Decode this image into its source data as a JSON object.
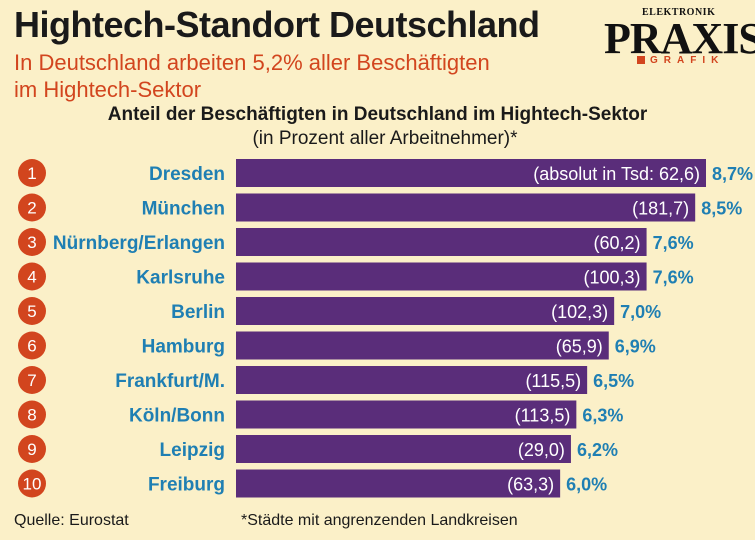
{
  "title": "Hightech-Standort Deutschland",
  "subtitle_line1": "In Deutschland arbeiten 5,2% aller Beschäftigten",
  "subtitle_line2": "im Hightech-Sektor",
  "logo": {
    "top": "ELEKTRONIK",
    "main": "PRAXIS",
    "bottom": "GRAFIK",
    "accent": "#d2451e"
  },
  "colors": {
    "bar": "#5a2d7a",
    "value": "#1f7fb3",
    "rank_badge": "#d2451e",
    "label": "#1f7fb3",
    "background": "#fbf0c8"
  },
  "source": "Quelle: Eurostat",
  "footnote": "*Städte mit angrenzenden Landkreisen",
  "chart_data": {
    "type": "bar",
    "orientation": "horizontal",
    "title": "Anteil der Beschäftigten in Deutschland im Hightech-Sektor",
    "subtitle": "(in Prozent aller Arbeitnehmer)*",
    "xlim": [
      0,
      8.7
    ],
    "unit": "%",
    "categories": [
      "Dresden",
      "München",
      "Nürnberg/Erlangen",
      "Karlsruhe",
      "Berlin",
      "Hamburg",
      "Frankfurt/M.",
      "Köln/Bonn",
      "Leipzig",
      "Freiburg"
    ],
    "ranks": [
      "1",
      "2",
      "3",
      "4",
      "5",
      "6",
      "7",
      "8",
      "9",
      "10"
    ],
    "values": [
      8.7,
      8.5,
      7.6,
      7.6,
      7.0,
      6.9,
      6.5,
      6.3,
      6.2,
      6.0
    ],
    "value_labels": [
      "8,7%",
      "8,5%",
      "7,6%",
      "7,6%",
      "7,0%",
      "6,9%",
      "6,5%",
      "6,3%",
      "6,2%",
      "6,0%"
    ],
    "absolute_values_thousands": [
      62.6,
      181.7,
      60.2,
      100.3,
      102.3,
      65.9,
      115.5,
      113.5,
      29.0,
      63.3
    ],
    "bar_labels": [
      "(absolut in Tsd: 62,6)",
      "(181,7)",
      "(60,2)",
      "(100,3)",
      "(102,3)",
      "(65,9)",
      "(115,5)",
      "(113,5)",
      "(29,0)",
      "(63,3)"
    ]
  }
}
